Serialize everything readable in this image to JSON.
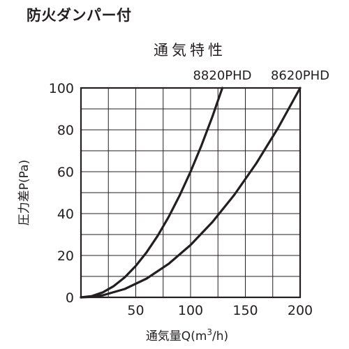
{
  "page": {
    "heading": "防火ダンパー付"
  },
  "chart_data": {
    "type": "line",
    "title": "通気特性",
    "xlabel_main": "通気量Q(m",
    "xlabel_sup": "3",
    "xlabel_end": "/h)",
    "ylabel": "圧力差P(Pa)",
    "xlim": [
      0,
      200
    ],
    "ylim": [
      0,
      100
    ],
    "x_ticks": [
      50,
      100,
      150,
      200
    ],
    "y_ticks": [
      0,
      20,
      40,
      60,
      80,
      100
    ],
    "x_grid_step": 25,
    "y_grid_step": 10,
    "grid": true,
    "legend": "series labels above plot at curve ends",
    "series": [
      {
        "name": "8820PHD",
        "x": [
          0,
          10,
          20,
          30,
          40,
          50,
          60,
          70,
          80,
          90,
          100,
          110,
          120,
          129
        ],
        "y": [
          0,
          0.6,
          2.4,
          5.4,
          9.6,
          15,
          21.6,
          29.4,
          38.4,
          48.6,
          60,
          72.6,
          86.4,
          100
        ]
      },
      {
        "name": "8620PHD",
        "x": [
          0,
          10,
          20,
          40,
          60,
          80,
          100,
          120,
          140,
          160,
          180,
          200
        ],
        "y": [
          0,
          0.25,
          1,
          4,
          9,
          16,
          25,
          36,
          49,
          64,
          81,
          100
        ]
      }
    ]
  }
}
